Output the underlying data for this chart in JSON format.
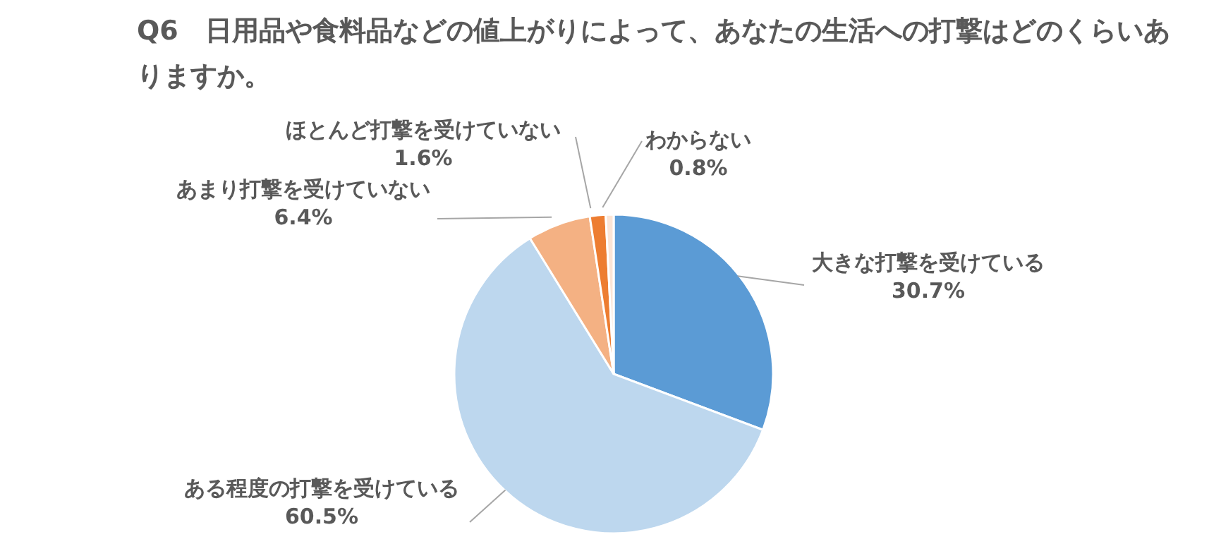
{
  "chart_data": {
    "type": "pie",
    "title": "Q6　日用品や食料品などの値上がりによって、あなたの生活への打撃はどのくらいありますか。",
    "categories": [
      "大きな打撃を受けている",
      "ある程度の打撃を受けている",
      "あまり打撃を受けていない",
      "ほとんど打撃を受けていない",
      "わからない"
    ],
    "values": [
      30.7,
      60.5,
      6.4,
      1.6,
      0.8
    ],
    "value_labels": [
      "30.7%",
      "60.5%",
      "6.4%",
      "1.6%",
      "0.8%"
    ],
    "colors": [
      "#5b9bd5",
      "#bdd7ee",
      "#f4b183",
      "#ed7d31",
      "#fbe5d6"
    ],
    "legend": false
  }
}
